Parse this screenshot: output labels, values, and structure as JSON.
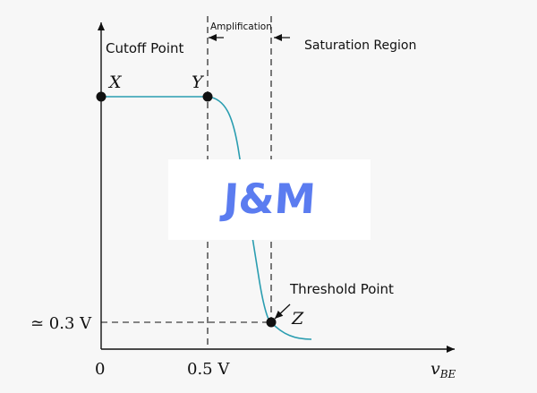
{
  "regions": {
    "cutoff": "Cutoff Point",
    "amplification": "Amplification",
    "saturation": "Saturation Region"
  },
  "points": {
    "x": "X",
    "y": "Y",
    "z": "Z"
  },
  "annotations": {
    "threshold": "Threshold Point"
  },
  "axis": {
    "origin": "0",
    "x_tick": "0.5 V",
    "y_tick": "≃ 0.3 V",
    "x_label": "v",
    "x_label_sub": "BE"
  },
  "logo": "J&M",
  "colors": {
    "curve": "#2a9db0",
    "logo": "#5b7cf0"
  }
}
